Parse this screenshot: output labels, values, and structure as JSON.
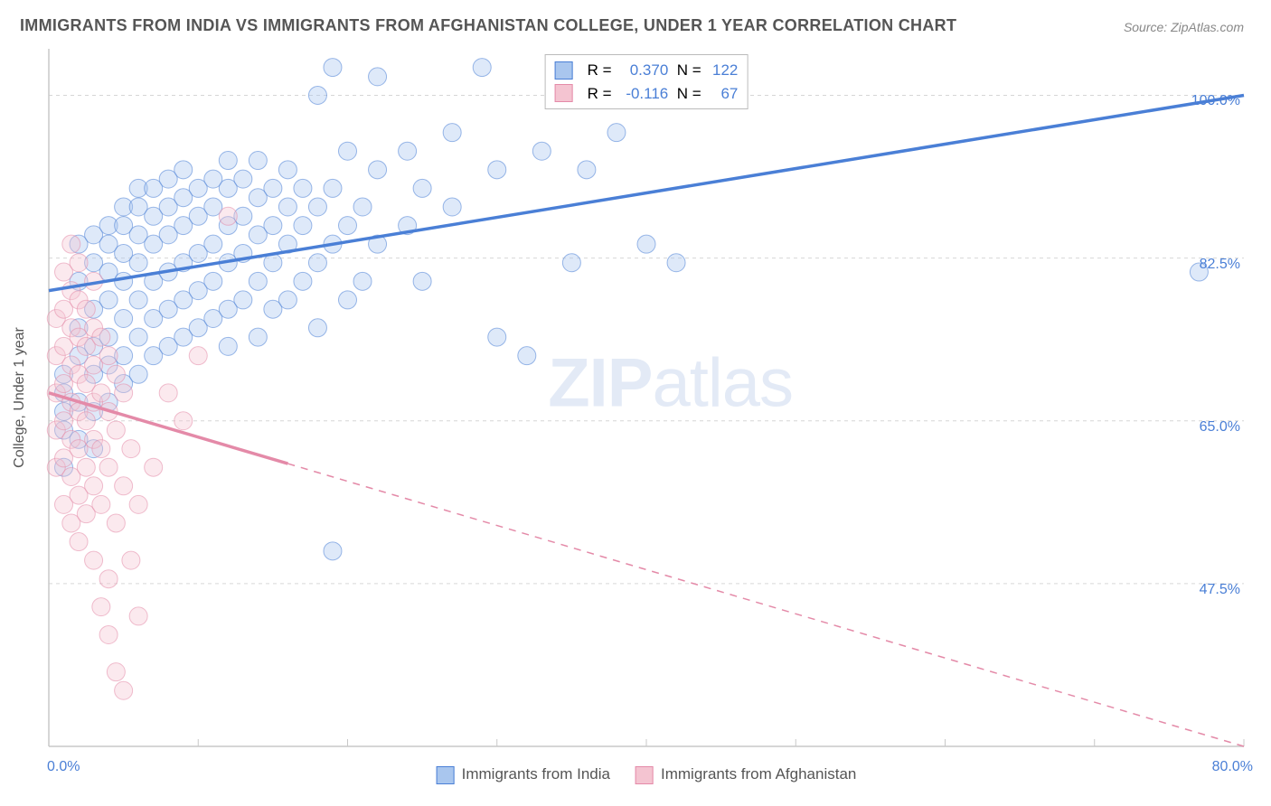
{
  "title": "IMMIGRANTS FROM INDIA VS IMMIGRANTS FROM AFGHANISTAN COLLEGE, UNDER 1 YEAR CORRELATION CHART",
  "source_label": "Source: ",
  "source_name": "ZipAtlas.com",
  "ylabel": "College, Under 1 year",
  "watermark_a": "ZIP",
  "watermark_b": "atlas",
  "chart": {
    "type": "scatter",
    "background_color": "#ffffff",
    "grid_color": "#d6d6d6",
    "axis_color": "#c8c8c8",
    "xlim": [
      0,
      80
    ],
    "ylim": [
      30,
      105
    ],
    "x_ticks": [
      0,
      10,
      20,
      30,
      40,
      50,
      60,
      70,
      80
    ],
    "x_tick_labels_shown": {
      "0": "0.0%",
      "80": "80.0%"
    },
    "y_gridlines": [
      47.5,
      65.0,
      82.5,
      100.0
    ],
    "y_tick_labels": {
      "47.5": "47.5%",
      "65.0": "65.0%",
      "82.5": "82.5%",
      "100.0": "100.0%"
    },
    "marker_radius": 10,
    "marker_opacity": 0.38,
    "line_width": 3.5,
    "series": [
      {
        "id": "india",
        "label": "Immigrants from India",
        "color_fill": "#a9c6ee",
        "color_stroke": "#4a7fd6",
        "R": "0.370",
        "N": "122",
        "regression": {
          "x1": 0,
          "y1": 79,
          "x2": 80,
          "y2": 100,
          "dash_from_x": null
        },
        "points": [
          [
            1,
            60
          ],
          [
            1,
            64
          ],
          [
            1,
            66
          ],
          [
            1,
            68
          ],
          [
            1,
            70
          ],
          [
            2,
            63
          ],
          [
            2,
            67
          ],
          [
            2,
            72
          ],
          [
            2,
            75
          ],
          [
            2,
            80
          ],
          [
            2,
            84
          ],
          [
            3,
            62
          ],
          [
            3,
            66
          ],
          [
            3,
            70
          ],
          [
            3,
            73
          ],
          [
            3,
            77
          ],
          [
            3,
            82
          ],
          [
            3,
            85
          ],
          [
            4,
            67
          ],
          [
            4,
            71
          ],
          [
            4,
            74
          ],
          [
            4,
            78
          ],
          [
            4,
            81
          ],
          [
            4,
            84
          ],
          [
            4,
            86
          ],
          [
            5,
            69
          ],
          [
            5,
            72
          ],
          [
            5,
            76
          ],
          [
            5,
            80
          ],
          [
            5,
            83
          ],
          [
            5,
            86
          ],
          [
            5,
            88
          ],
          [
            6,
            70
          ],
          [
            6,
            74
          ],
          [
            6,
            78
          ],
          [
            6,
            82
          ],
          [
            6,
            85
          ],
          [
            6,
            88
          ],
          [
            6,
            90
          ],
          [
            7,
            72
          ],
          [
            7,
            76
          ],
          [
            7,
            80
          ],
          [
            7,
            84
          ],
          [
            7,
            87
          ],
          [
            7,
            90
          ],
          [
            8,
            73
          ],
          [
            8,
            77
          ],
          [
            8,
            81
          ],
          [
            8,
            85
          ],
          [
            8,
            88
          ],
          [
            8,
            91
          ],
          [
            9,
            74
          ],
          [
            9,
            78
          ],
          [
            9,
            82
          ],
          [
            9,
            86
          ],
          [
            9,
            89
          ],
          [
            9,
            92
          ],
          [
            10,
            75
          ],
          [
            10,
            79
          ],
          [
            10,
            83
          ],
          [
            10,
            87
          ],
          [
            10,
            90
          ],
          [
            11,
            76
          ],
          [
            11,
            80
          ],
          [
            11,
            84
          ],
          [
            11,
            88
          ],
          [
            11,
            91
          ],
          [
            12,
            73
          ],
          [
            12,
            77
          ],
          [
            12,
            82
          ],
          [
            12,
            86
          ],
          [
            12,
            90
          ],
          [
            12,
            93
          ],
          [
            13,
            78
          ],
          [
            13,
            83
          ],
          [
            13,
            87
          ],
          [
            13,
            91
          ],
          [
            14,
            74
          ],
          [
            14,
            80
          ],
          [
            14,
            85
          ],
          [
            14,
            89
          ],
          [
            14,
            93
          ],
          [
            15,
            77
          ],
          [
            15,
            82
          ],
          [
            15,
            86
          ],
          [
            15,
            90
          ],
          [
            16,
            78
          ],
          [
            16,
            84
          ],
          [
            16,
            88
          ],
          [
            16,
            92
          ],
          [
            17,
            80
          ],
          [
            17,
            86
          ],
          [
            17,
            90
          ],
          [
            18,
            75
          ],
          [
            18,
            82
          ],
          [
            18,
            88
          ],
          [
            18,
            100
          ],
          [
            19,
            51
          ],
          [
            19,
            84
          ],
          [
            19,
            90
          ],
          [
            19,
            103
          ],
          [
            20,
            78
          ],
          [
            20,
            86
          ],
          [
            20,
            94
          ],
          [
            21,
            80
          ],
          [
            21,
            88
          ],
          [
            22,
            84
          ],
          [
            22,
            92
          ],
          [
            22,
            102
          ],
          [
            24,
            86
          ],
          [
            24,
            94
          ],
          [
            25,
            80
          ],
          [
            25,
            90
          ],
          [
            27,
            88
          ],
          [
            27,
            96
          ],
          [
            29,
            103
          ],
          [
            30,
            74
          ],
          [
            30,
            92
          ],
          [
            32,
            72
          ],
          [
            33,
            94
          ],
          [
            35,
            82
          ],
          [
            36,
            92
          ],
          [
            38,
            96
          ],
          [
            40,
            84
          ],
          [
            42,
            82
          ],
          [
            77,
            81
          ]
        ]
      },
      {
        "id": "afghanistan",
        "label": "Immigrants from Afghanistan",
        "color_fill": "#f4c4d1",
        "color_stroke": "#e48aa8",
        "R": "-0.116",
        "N": "67",
        "regression": {
          "x1": 0,
          "y1": 68,
          "x2": 80,
          "y2": 30,
          "dash_from_x": 16
        },
        "points": [
          [
            0.5,
            60
          ],
          [
            0.5,
            64
          ],
          [
            0.5,
            68
          ],
          [
            0.5,
            72
          ],
          [
            0.5,
            76
          ],
          [
            1,
            56
          ],
          [
            1,
            61
          ],
          [
            1,
            65
          ],
          [
            1,
            69
          ],
          [
            1,
            73
          ],
          [
            1,
            77
          ],
          [
            1,
            81
          ],
          [
            1.5,
            54
          ],
          [
            1.5,
            59
          ],
          [
            1.5,
            63
          ],
          [
            1.5,
            67
          ],
          [
            1.5,
            71
          ],
          [
            1.5,
            75
          ],
          [
            1.5,
            79
          ],
          [
            1.5,
            84
          ],
          [
            2,
            52
          ],
          [
            2,
            57
          ],
          [
            2,
            62
          ],
          [
            2,
            66
          ],
          [
            2,
            70
          ],
          [
            2,
            74
          ],
          [
            2,
            78
          ],
          [
            2,
            82
          ],
          [
            2.5,
            55
          ],
          [
            2.5,
            60
          ],
          [
            2.5,
            65
          ],
          [
            2.5,
            69
          ],
          [
            2.5,
            73
          ],
          [
            2.5,
            77
          ],
          [
            3,
            50
          ],
          [
            3,
            58
          ],
          [
            3,
            63
          ],
          [
            3,
            67
          ],
          [
            3,
            71
          ],
          [
            3,
            75
          ],
          [
            3,
            80
          ],
          [
            3.5,
            45
          ],
          [
            3.5,
            56
          ],
          [
            3.5,
            62
          ],
          [
            3.5,
            68
          ],
          [
            3.5,
            74
          ],
          [
            4,
            42
          ],
          [
            4,
            48
          ],
          [
            4,
            60
          ],
          [
            4,
            66
          ],
          [
            4,
            72
          ],
          [
            4.5,
            38
          ],
          [
            4.5,
            54
          ],
          [
            4.5,
            64
          ],
          [
            4.5,
            70
          ],
          [
            5,
            36
          ],
          [
            5,
            58
          ],
          [
            5,
            68
          ],
          [
            5.5,
            50
          ],
          [
            5.5,
            62
          ],
          [
            6,
            44
          ],
          [
            6,
            56
          ],
          [
            7,
            60
          ],
          [
            8,
            68
          ],
          [
            9,
            65
          ],
          [
            10,
            72
          ],
          [
            12,
            87
          ]
        ]
      }
    ],
    "bottom_legend": [
      {
        "swatch_fill": "#a9c6ee",
        "swatch_stroke": "#4a7fd6",
        "key": "series.0.label"
      },
      {
        "swatch_fill": "#f4c4d1",
        "swatch_stroke": "#e48aa8",
        "key": "series.1.label"
      }
    ],
    "r_legend_labels": {
      "R_prefix": "R = ",
      "N_prefix": "N = "
    }
  }
}
